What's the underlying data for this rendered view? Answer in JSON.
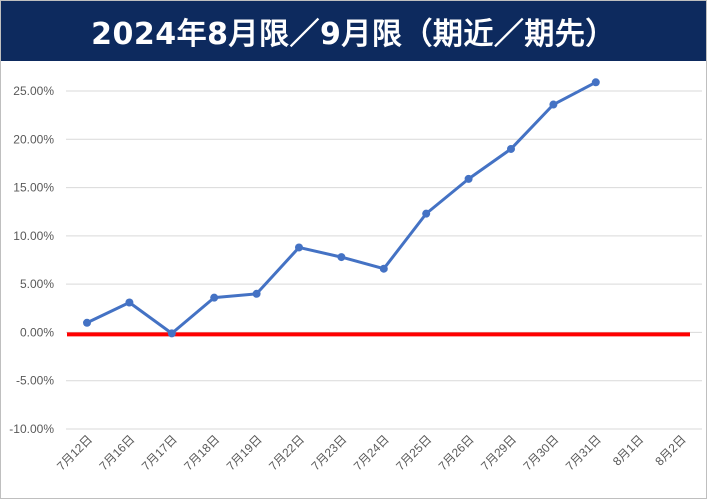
{
  "title": "2024年8月限／9月限（期近／期先）",
  "colors": {
    "title_bar": "#0d2a5e",
    "series": "#4472c4",
    "zero_line": "#ff0000",
    "grid": "#d9d9d9"
  },
  "chart_data": {
    "type": "line",
    "title": "2024年8月限／9月限（期近／期先）",
    "xlabel": "",
    "ylabel": "",
    "categories": [
      "7月12日",
      "7月16日",
      "7月17日",
      "7月18日",
      "7月19日",
      "7月22日",
      "7月23日",
      "7月24日",
      "7月25日",
      "7月26日",
      "7月29日",
      "7月30日",
      "7月31日",
      "8月1日",
      "8月2日"
    ],
    "series": [
      {
        "values": [
          1.0,
          3.1,
          -0.1,
          3.6,
          4.0,
          8.8,
          7.8,
          6.6,
          12.3,
          15.9,
          19.0,
          23.6,
          25.9,
          null,
          null
        ]
      }
    ],
    "y_ticks": [
      "25.00%",
      "20.00%",
      "15.00%",
      "10.00%",
      "5.00%",
      "0.00%",
      "-5.00%",
      "-10.00%"
    ],
    "ylim": [
      -10,
      25
    ],
    "y_unit": "%",
    "reference_line": 0,
    "grid": true,
    "legend": "none"
  }
}
